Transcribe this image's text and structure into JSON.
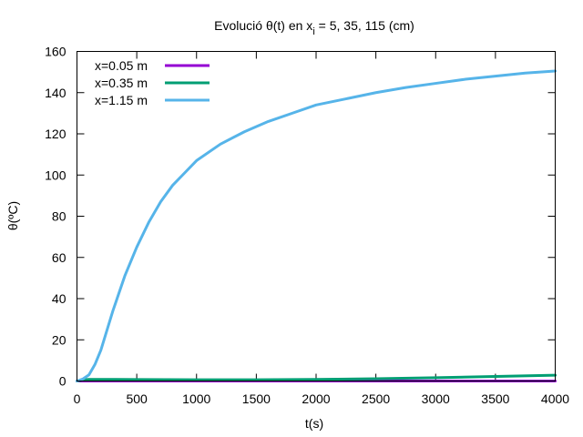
{
  "chart_data": {
    "type": "line",
    "title_prefix": "Evolució θ(t) en x",
    "title_subscript": "i",
    "title_suffix": " = 5, 35, 115 (cm)",
    "xlabel": "t(s)",
    "ylabel": "θ(ºC)",
    "xlim": [
      0,
      4000
    ],
    "ylim": [
      0,
      160
    ],
    "xticks": [
      0,
      500,
      1000,
      1500,
      2000,
      2500,
      3000,
      3500,
      4000
    ],
    "yticks": [
      0,
      20,
      40,
      60,
      80,
      100,
      120,
      140,
      160
    ],
    "legend_position": "top-left",
    "grid": false,
    "series": [
      {
        "name": "x=0.05 m",
        "color": "#9400d3",
        "x": [
          0,
          200,
          1000,
          2000,
          3000,
          4000
        ],
        "y": [
          0,
          0,
          0,
          0,
          0,
          0
        ]
      },
      {
        "name": "x=0.35 m",
        "color": "#009e73",
        "x": [
          0,
          30,
          60,
          100,
          200,
          500,
          1000,
          1500,
          2000,
          2500,
          3000,
          3500,
          4000
        ],
        "y": [
          0,
          0.3,
          0.6,
          0.8,
          0.8,
          0.7,
          0.6,
          0.6,
          0.8,
          1.1,
          1.6,
          2.2,
          2.8
        ]
      },
      {
        "name": "x=1.15 m",
        "color": "#56b4e9",
        "x": [
          0,
          50,
          100,
          150,
          200,
          300,
          400,
          500,
          600,
          700,
          800,
          900,
          1000,
          1200,
          1400,
          1600,
          1800,
          2000,
          2250,
          2500,
          2750,
          3000,
          3250,
          3500,
          3750,
          4000
        ],
        "y": [
          0,
          1,
          3,
          8,
          15,
          34,
          51,
          65,
          77,
          87,
          95,
          101,
          107,
          115,
          121,
          126,
          130,
          134,
          137,
          140,
          142.5,
          144.5,
          146.5,
          148,
          149.5,
          150.5
        ]
      }
    ]
  }
}
